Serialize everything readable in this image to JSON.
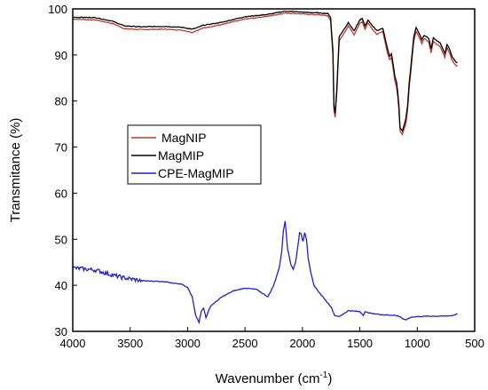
{
  "chart_data": {
    "type": "line",
    "title": "",
    "xlabel": "Wavenumber (cm",
    "xlabel_sup": "-1",
    "xlabel_end": ")",
    "ylabel": "Transmitance (%)",
    "xlim": [
      4000,
      500
    ],
    "ylim": [
      30,
      100
    ],
    "x_ticks": [
      "4000",
      "3500",
      "3000",
      "2500",
      "2000",
      "1500",
      "1000",
      "500"
    ],
    "x_tick_values": [
      4000,
      3500,
      3000,
      2500,
      2000,
      1500,
      1000,
      500
    ],
    "y_ticks": [
      "30",
      "40",
      "50",
      "60",
      "70",
      "80",
      "90",
      "100"
    ],
    "y_tick_values": [
      30,
      40,
      50,
      60,
      70,
      80,
      90,
      100
    ],
    "grid": false,
    "legend_position": "center-left",
    "series": [
      {
        "name": "MagNIP",
        "color": "#c0392b",
        "x": [
          4000,
          3800,
          3650,
          3550,
          3400,
          3200,
          3050,
          2960,
          2930,
          2870,
          2700,
          2500,
          2300,
          2150,
          2000,
          1850,
          1780,
          1755,
          1735,
          1725,
          1715,
          1700,
          1680,
          1600,
          1550,
          1500,
          1480,
          1455,
          1430,
          1400,
          1380,
          1350,
          1300,
          1260,
          1240,
          1225,
          1210,
          1195,
          1180,
          1170,
          1160,
          1150,
          1130,
          1115,
          1100,
          1085,
          1070,
          1050,
          1030,
          1010,
          990,
          960,
          940,
          900,
          880,
          860,
          840,
          800,
          760,
          740,
          720,
          700,
          680,
          660,
          650
        ],
        "y": [
          97.8,
          97.6,
          96.8,
          95.7,
          95.5,
          95.6,
          95.4,
          94.9,
          95.2,
          95.8,
          96.6,
          97.8,
          98.4,
          99.1,
          98.9,
          98.7,
          98.5,
          97.5,
          90,
          78,
          76.5,
          82,
          93,
          96.3,
          94.4,
          96.9,
          97.2,
          95.6,
          97,
          96,
          95.2,
          94.5,
          95.1,
          90.5,
          88.9,
          89.5,
          87,
          84.5,
          83,
          81,
          78,
          73.5,
          72.8,
          74,
          75,
          78,
          83,
          88,
          93,
          95.1,
          94.2,
          92.5,
          93.6,
          92.8,
          90.5,
          93,
          92.5,
          91.8,
          89.5,
          91.5,
          90.5,
          89,
          88.2,
          87.6,
          87.6
        ]
      },
      {
        "name": "MagMIP",
        "color": "#000000",
        "x": [
          4000,
          3800,
          3650,
          3550,
          3400,
          3200,
          3050,
          2960,
          2930,
          2870,
          2700,
          2500,
          2300,
          2150,
          2000,
          1850,
          1780,
          1755,
          1735,
          1725,
          1715,
          1700,
          1680,
          1600,
          1550,
          1500,
          1480,
          1455,
          1430,
          1400,
          1380,
          1350,
          1300,
          1260,
          1240,
          1225,
          1210,
          1195,
          1180,
          1170,
          1160,
          1150,
          1130,
          1115,
          1100,
          1085,
          1070,
          1050,
          1030,
          1010,
          990,
          960,
          940,
          900,
          880,
          860,
          840,
          800,
          760,
          740,
          720,
          700,
          680,
          660,
          650
        ],
        "y": [
          98.2,
          98.1,
          97.3,
          96.3,
          96.1,
          96.2,
          96,
          95.6,
          95.8,
          96.4,
          97.1,
          98.3,
          98.8,
          99.5,
          99.3,
          99.1,
          99,
          98.2,
          91,
          79,
          77.2,
          83,
          94,
          97,
          95.2,
          97.6,
          97.9,
          96.3,
          97.6,
          96.7,
          96,
          95.3,
          95.8,
          91.4,
          89.7,
          90.3,
          88,
          85.3,
          84,
          82,
          79,
          74.2,
          73.5,
          74.8,
          76,
          79,
          84,
          89,
          94,
          95.9,
          95,
          93.3,
          94.3,
          93.6,
          91.3,
          93.8,
          93.3,
          92.6,
          90.3,
          92.3,
          91.3,
          89.8,
          89,
          88.4,
          88.4
        ]
      },
      {
        "name": "CPE-MagMIP",
        "color": "#1f1fd0",
        "x": [
          4000,
          3800,
          3650,
          3550,
          3400,
          3200,
          3050,
          3000,
          2960,
          2930,
          2900,
          2880,
          2860,
          2840,
          2800,
          2700,
          2600,
          2500,
          2400,
          2350,
          2300,
          2250,
          2200,
          2180,
          2165,
          2150,
          2130,
          2100,
          2080,
          2060,
          2040,
          2025,
          2010,
          1995,
          1980,
          1965,
          1950,
          1930,
          1900,
          1850,
          1800,
          1750,
          1720,
          1680,
          1600,
          1500,
          1470,
          1455,
          1430,
          1400,
          1300,
          1200,
          1150,
          1120,
          1100,
          1050,
          1000,
          900,
          800,
          700,
          650
        ],
        "y": [
          43.8,
          43.3,
          42.2,
          41.6,
          41,
          40.8,
          40.2,
          39.5,
          37.5,
          33.5,
          32,
          34.5,
          35,
          33,
          35.5,
          37.5,
          38.8,
          39.4,
          39.1,
          38.3,
          37.5,
          40,
          44,
          47.5,
          52,
          54,
          48,
          44.5,
          43.5,
          45,
          48.5,
          51.5,
          51,
          49.5,
          51.5,
          50,
          46,
          43,
          40,
          38.3,
          36.8,
          35.3,
          33.5,
          33.2,
          34.5,
          34.3,
          33.5,
          34.2,
          34.1,
          33.9,
          33.6,
          33.5,
          33.2,
          32.6,
          32.5,
          33.1,
          33.2,
          33.3,
          33.3,
          33.4,
          33.8
        ]
      }
    ]
  }
}
